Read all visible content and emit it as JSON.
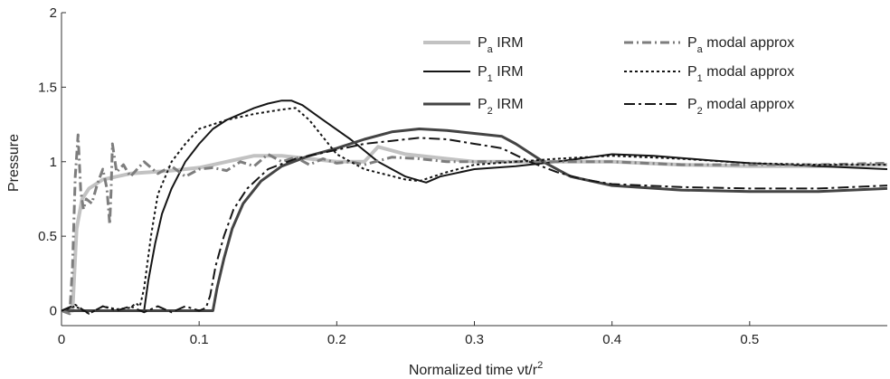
{
  "chart_data": {
    "type": "line",
    "xlabel": "Normalized time νt/r",
    "xlabel_superscript": "2",
    "ylabel": "Pressure",
    "xlim": [
      0,
      0.6
    ],
    "ylim": [
      -0.1,
      2
    ],
    "x_ticks": [
      "0",
      "0.1",
      "0.2",
      "0.3",
      "0.4",
      "0.5"
    ],
    "y_ticks": [
      "0",
      "0.5",
      "1",
      "1.5",
      "2"
    ],
    "legend_position": "top",
    "series": [
      {
        "name": "Pa IRM",
        "base": "P",
        "sub": "a",
        "label": "IRM",
        "color": "#c2c2c2",
        "width": 4,
        "dash": "",
        "x": [
          0,
          0.008,
          0.011,
          0.015,
          0.02,
          0.03,
          0.05,
          0.08,
          0.1,
          0.12,
          0.14,
          0.16,
          0.18,
          0.2,
          0.22,
          0.23,
          0.25,
          0.28,
          0.3,
          0.35,
          0.4,
          0.45,
          0.5,
          0.55,
          0.6
        ],
        "y": [
          0,
          0,
          0.55,
          0.75,
          0.82,
          0.88,
          0.92,
          0.94,
          0.96,
          1.0,
          1.04,
          1.04,
          1.02,
          1.0,
          1.0,
          1.1,
          1.05,
          1.02,
          1.0,
          1.0,
          1.0,
          0.98,
          0.97,
          0.97,
          0.98
        ]
      },
      {
        "name": "P1 IRM",
        "base": "P",
        "sub": "1",
        "label": "IRM",
        "color": "#151515",
        "width": 2,
        "dash": "",
        "x": [
          0,
          0.06,
          0.063,
          0.068,
          0.073,
          0.08,
          0.09,
          0.1,
          0.11,
          0.12,
          0.13,
          0.14,
          0.15,
          0.16,
          0.167,
          0.175,
          0.19,
          0.21,
          0.23,
          0.25,
          0.265,
          0.275,
          0.3,
          0.33,
          0.36,
          0.4,
          0.43,
          0.47,
          0.5,
          0.55,
          0.6
        ],
        "y": [
          0,
          0,
          0.2,
          0.45,
          0.65,
          0.82,
          1.0,
          1.12,
          1.22,
          1.28,
          1.32,
          1.36,
          1.39,
          1.41,
          1.41,
          1.38,
          1.28,
          1.15,
          1.0,
          0.9,
          0.86,
          0.9,
          0.95,
          0.97,
          1.0,
          1.05,
          1.04,
          1.01,
          0.99,
          0.97,
          0.95
        ]
      },
      {
        "name": "P2 IRM",
        "base": "P",
        "sub": "2",
        "label": "IRM",
        "color": "#444444",
        "width": 3,
        "dash": "",
        "x": [
          0,
          0.11,
          0.113,
          0.118,
          0.124,
          0.132,
          0.145,
          0.16,
          0.18,
          0.2,
          0.22,
          0.24,
          0.26,
          0.28,
          0.3,
          0.32,
          0.33,
          0.35,
          0.37,
          0.4,
          0.45,
          0.5,
          0.55,
          0.6
        ],
        "y": [
          0,
          0,
          0.15,
          0.35,
          0.55,
          0.72,
          0.87,
          0.97,
          1.04,
          1.09,
          1.15,
          1.2,
          1.22,
          1.21,
          1.19,
          1.17,
          1.12,
          1.0,
          0.9,
          0.84,
          0.81,
          0.8,
          0.8,
          0.82
        ]
      },
      {
        "name": "Pa modal approx",
        "base": "P",
        "sub": "a",
        "label": "modal approx",
        "color": "#7d7d7d",
        "width": 3,
        "dash": "10 4 2 4",
        "x": [
          0,
          0.006,
          0.008,
          0.01,
          0.012,
          0.014,
          0.016,
          0.018,
          0.022,
          0.026,
          0.03,
          0.033,
          0.035,
          0.036,
          0.037,
          0.04,
          0.045,
          0.05,
          0.06,
          0.07,
          0.08,
          0.09,
          0.1,
          0.11,
          0.12,
          0.13,
          0.14,
          0.15,
          0.16,
          0.17,
          0.18,
          0.19,
          0.2,
          0.21,
          0.22,
          0.24,
          0.26,
          0.28,
          0.3,
          0.35,
          0.4,
          0.45,
          0.5,
          0.55,
          0.6
        ],
        "y": [
          0,
          -0.02,
          0.3,
          0.9,
          1.18,
          0.8,
          0.68,
          0.75,
          0.72,
          0.85,
          0.95,
          0.82,
          0.58,
          0.8,
          1.12,
          0.93,
          0.98,
          0.9,
          1.0,
          0.92,
          0.97,
          0.9,
          0.95,
          0.96,
          0.94,
          1.0,
          0.97,
          1.05,
          1.0,
          1.03,
          0.98,
          1.02,
          0.99,
          1.0,
          0.98,
          1.03,
          1.02,
          1.0,
          1.0,
          1.0,
          1.0,
          0.98,
          0.98,
          0.98,
          0.99
        ]
      },
      {
        "name": "P1 modal approx",
        "base": "P",
        "sub": "1",
        "label": "modal approx",
        "color": "#151515",
        "width": 2,
        "dash": "3 3",
        "x": [
          0,
          0.01,
          0.02,
          0.03,
          0.04,
          0.05,
          0.054,
          0.057,
          0.06,
          0.065,
          0.07,
          0.08,
          0.09,
          0.1,
          0.12,
          0.14,
          0.16,
          0.17,
          0.18,
          0.2,
          0.22,
          0.25,
          0.26,
          0.28,
          0.3,
          0.33,
          0.36,
          0.4,
          0.45,
          0.5,
          0.55,
          0.6
        ],
        "y": [
          0,
          0.03,
          -0.02,
          0.03,
          0.01,
          0.02,
          0.05,
          0.03,
          0.15,
          0.5,
          0.78,
          1.0,
          1.12,
          1.22,
          1.28,
          1.32,
          1.35,
          1.36,
          1.28,
          1.05,
          0.95,
          0.88,
          0.87,
          0.93,
          0.98,
          1.0,
          1.02,
          1.04,
          1.02,
          0.99,
          0.98,
          0.98
        ]
      },
      {
        "name": "P2 modal approx",
        "base": "P",
        "sub": "2",
        "label": "modal approx",
        "color": "#151515",
        "width": 2,
        "dash": "12 4 3 4",
        "x": [
          0,
          0.01,
          0.02,
          0.03,
          0.04,
          0.05,
          0.06,
          0.07,
          0.08,
          0.09,
          0.1,
          0.105,
          0.108,
          0.112,
          0.118,
          0.125,
          0.135,
          0.15,
          0.17,
          0.2,
          0.22,
          0.24,
          0.26,
          0.28,
          0.3,
          0.32,
          0.34,
          0.36,
          0.38,
          0.4,
          0.45,
          0.5,
          0.55,
          0.6
        ],
        "y": [
          0,
          0.04,
          -0.02,
          0.03,
          0.0,
          0.03,
          -0.01,
          0.03,
          -0.01,
          0.03,
          0.0,
          0.02,
          0.1,
          0.3,
          0.5,
          0.68,
          0.82,
          0.95,
          1.02,
          1.08,
          1.12,
          1.14,
          1.16,
          1.15,
          1.12,
          1.09,
          1.0,
          0.93,
          0.88,
          0.85,
          0.83,
          0.82,
          0.82,
          0.84
        ]
      }
    ]
  }
}
